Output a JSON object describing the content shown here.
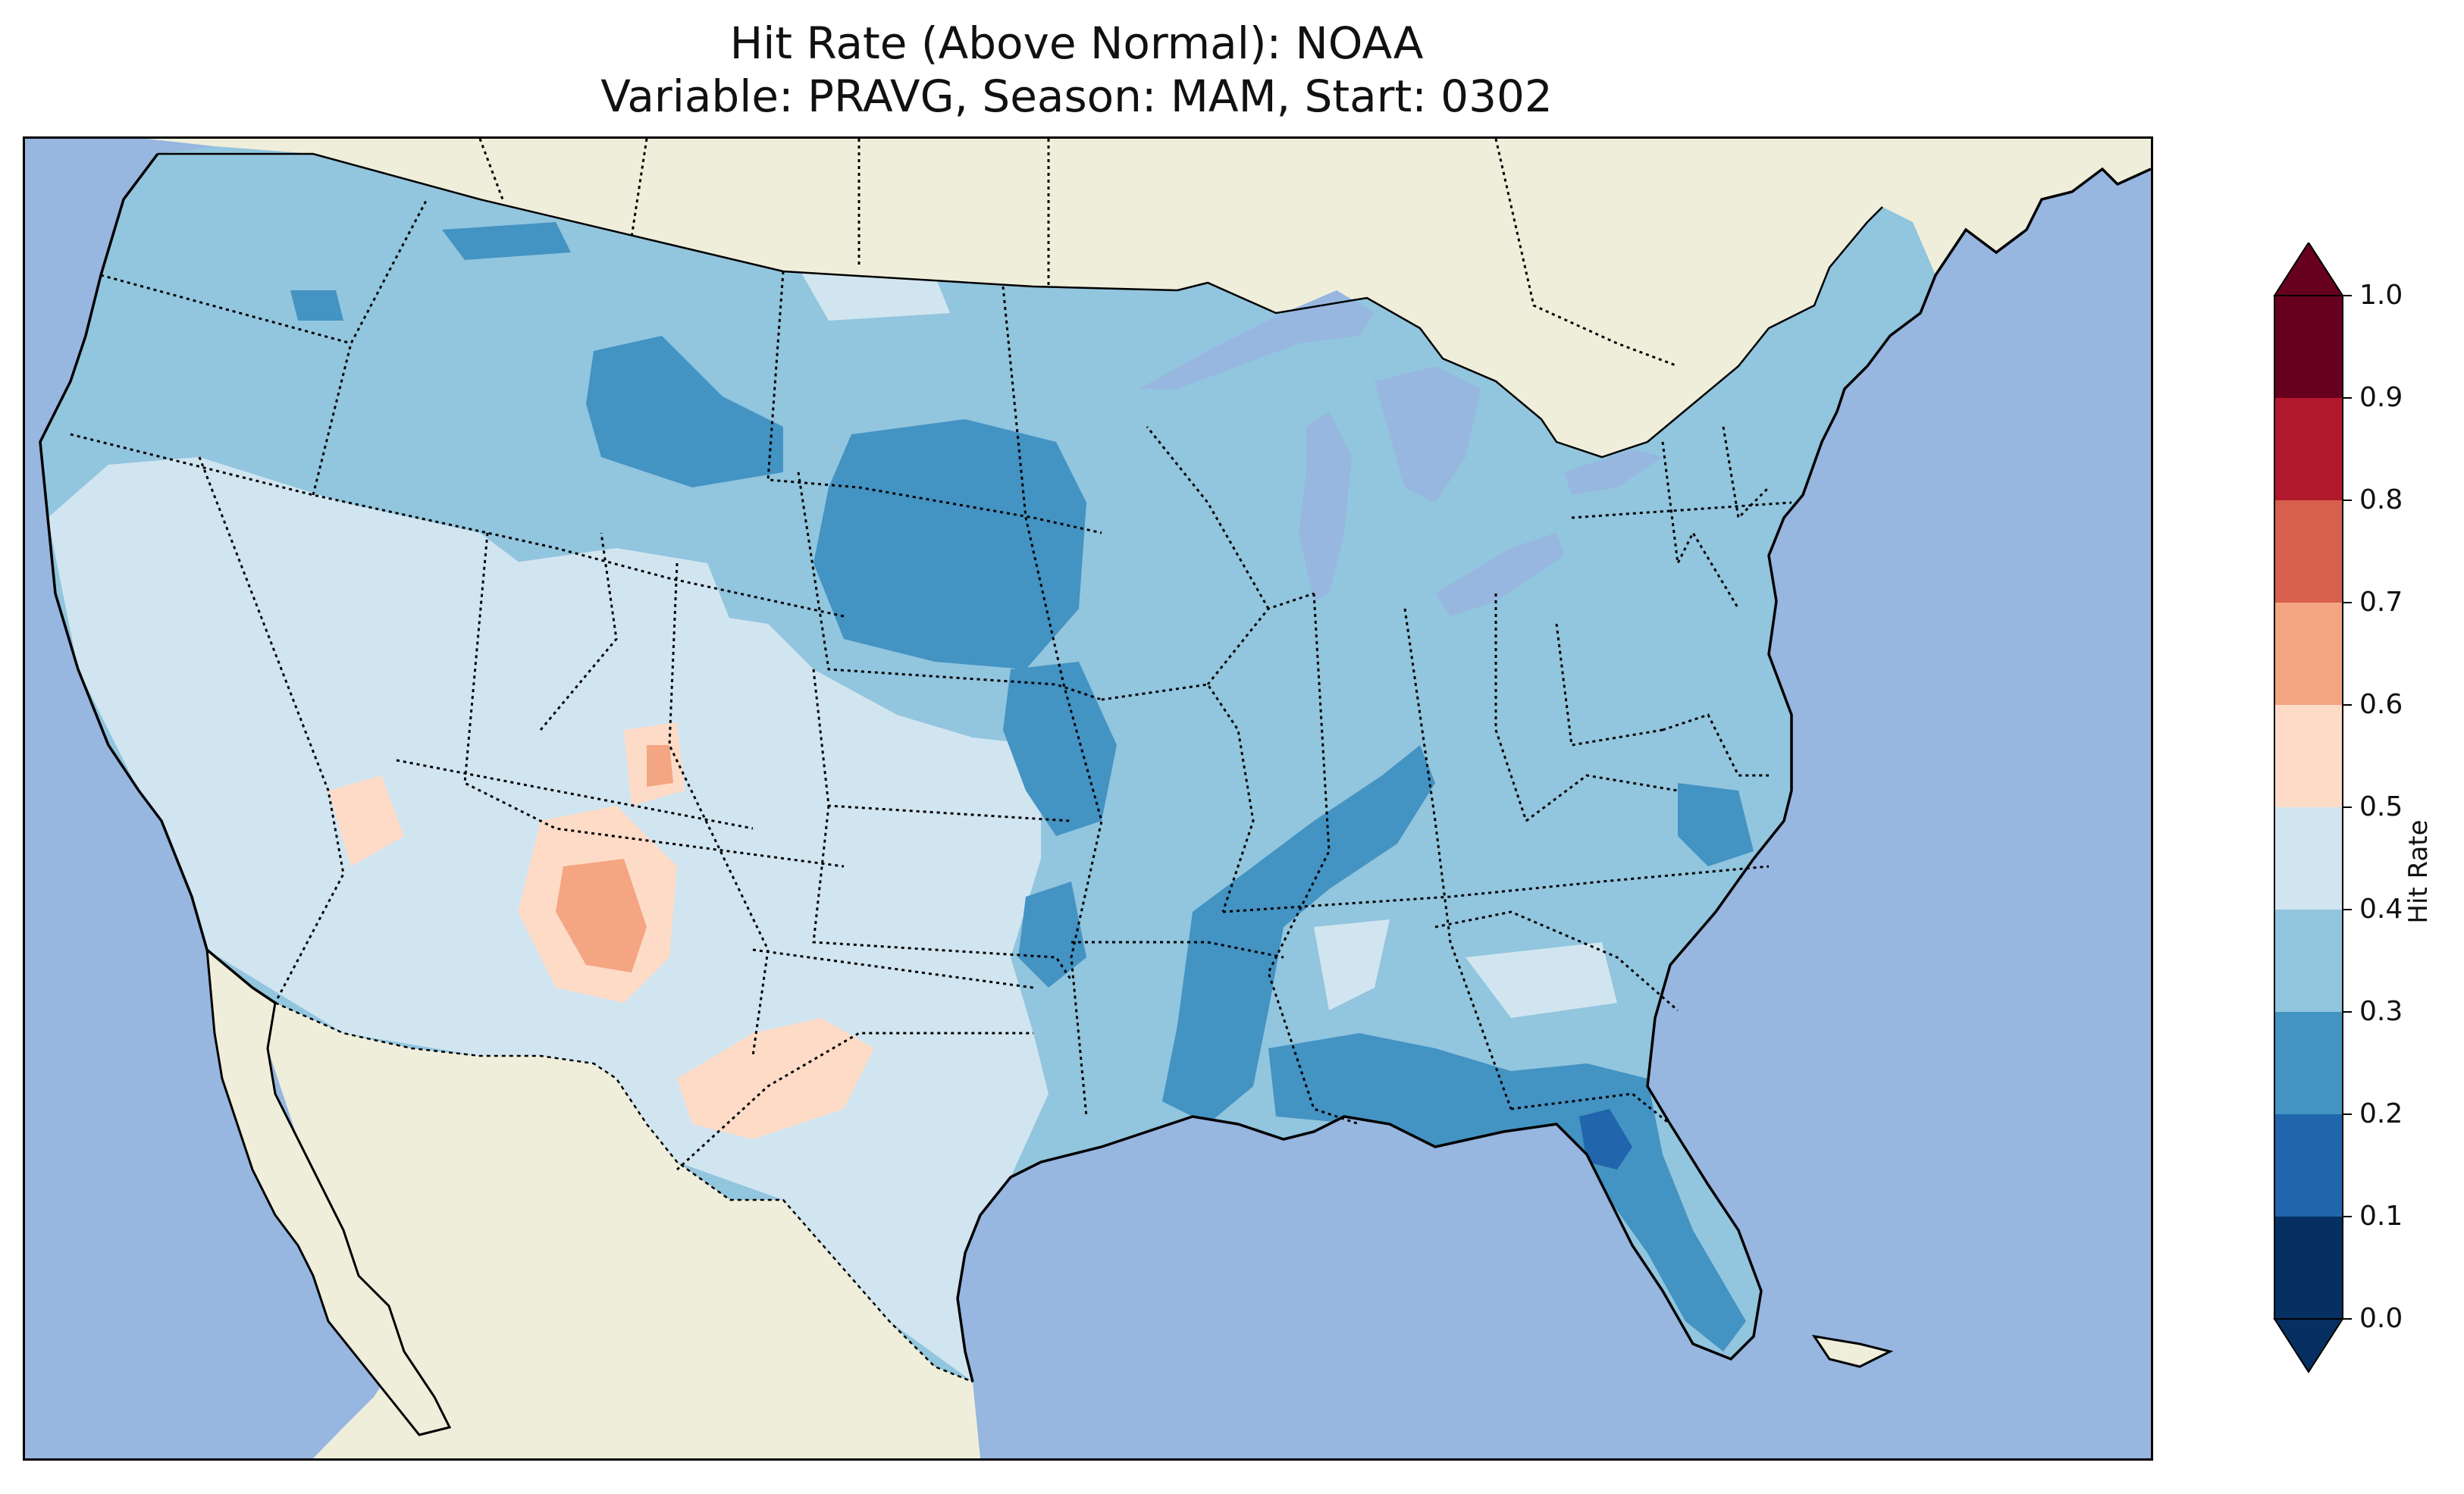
{
  "title": {
    "line1": "Hit Rate (Above Normal): NOAA",
    "line2": "Variable: PRAVG, Season: MAM, Start: 0302"
  },
  "map": {
    "region": "Contiguous United States",
    "projection": "Lambert Conformal",
    "colors": {
      "ocean": "#97b6e0",
      "land": "#efeedb",
      "coastline": "#000000"
    }
  },
  "colorbar": {
    "label": "Hit Rate",
    "ticks": [
      "0.0",
      "0.1",
      "0.2",
      "0.3",
      "0.4",
      "0.5",
      "0.6",
      "0.7",
      "0.8",
      "0.9",
      "1.0"
    ],
    "colormap": "RdBu_r",
    "extend": "both",
    "bins": [
      {
        "range": [
          0.0,
          0.1
        ],
        "color": "#053061"
      },
      {
        "range": [
          0.1,
          0.2
        ],
        "color": "#2166ac"
      },
      {
        "range": [
          0.2,
          0.3
        ],
        "color": "#4393c3"
      },
      {
        "range": [
          0.3,
          0.4
        ],
        "color": "#92c5de"
      },
      {
        "range": [
          0.4,
          0.5
        ],
        "color": "#d1e5f0"
      },
      {
        "range": [
          0.5,
          0.6
        ],
        "color": "#fddbc7"
      },
      {
        "range": [
          0.6,
          0.7
        ],
        "color": "#f4a582"
      },
      {
        "range": [
          0.7,
          0.8
        ],
        "color": "#d6604d"
      },
      {
        "range": [
          0.8,
          0.9
        ],
        "color": "#b2182b"
      },
      {
        "range": [
          0.9,
          1.0
        ],
        "color": "#67001f"
      }
    ],
    "under_color": "#053061",
    "over_color": "#67001f"
  },
  "hit_rate_regions": [
    {
      "name": "Northern Rockies / Pacific NW",
      "value_bin": [
        0.3,
        0.4
      ]
    },
    {
      "name": "Great Basin / California",
      "value_bin": [
        0.4,
        0.5
      ]
    },
    {
      "name": "Four Corners / New Mexico",
      "value_bin": [
        0.5,
        0.6
      ]
    },
    {
      "name": "Central Arizona / NM core",
      "value_bin": [
        0.6,
        0.7
      ]
    },
    {
      "name": "Dakotas core",
      "value_bin": [
        0.2,
        0.3
      ]
    },
    {
      "name": "Mississippi / Ohio corridor",
      "value_bin": [
        0.2,
        0.3
      ]
    },
    {
      "name": "Gulf Coast / North Florida",
      "value_bin": [
        0.2,
        0.3
      ]
    },
    {
      "name": "Central Florida",
      "value_bin": [
        0.1,
        0.2
      ]
    },
    {
      "name": "Texas",
      "value_bin": [
        0.4,
        0.5
      ]
    },
    {
      "name": "Northeast / Midwest",
      "value_bin": [
        0.3,
        0.4
      ]
    }
  ]
}
